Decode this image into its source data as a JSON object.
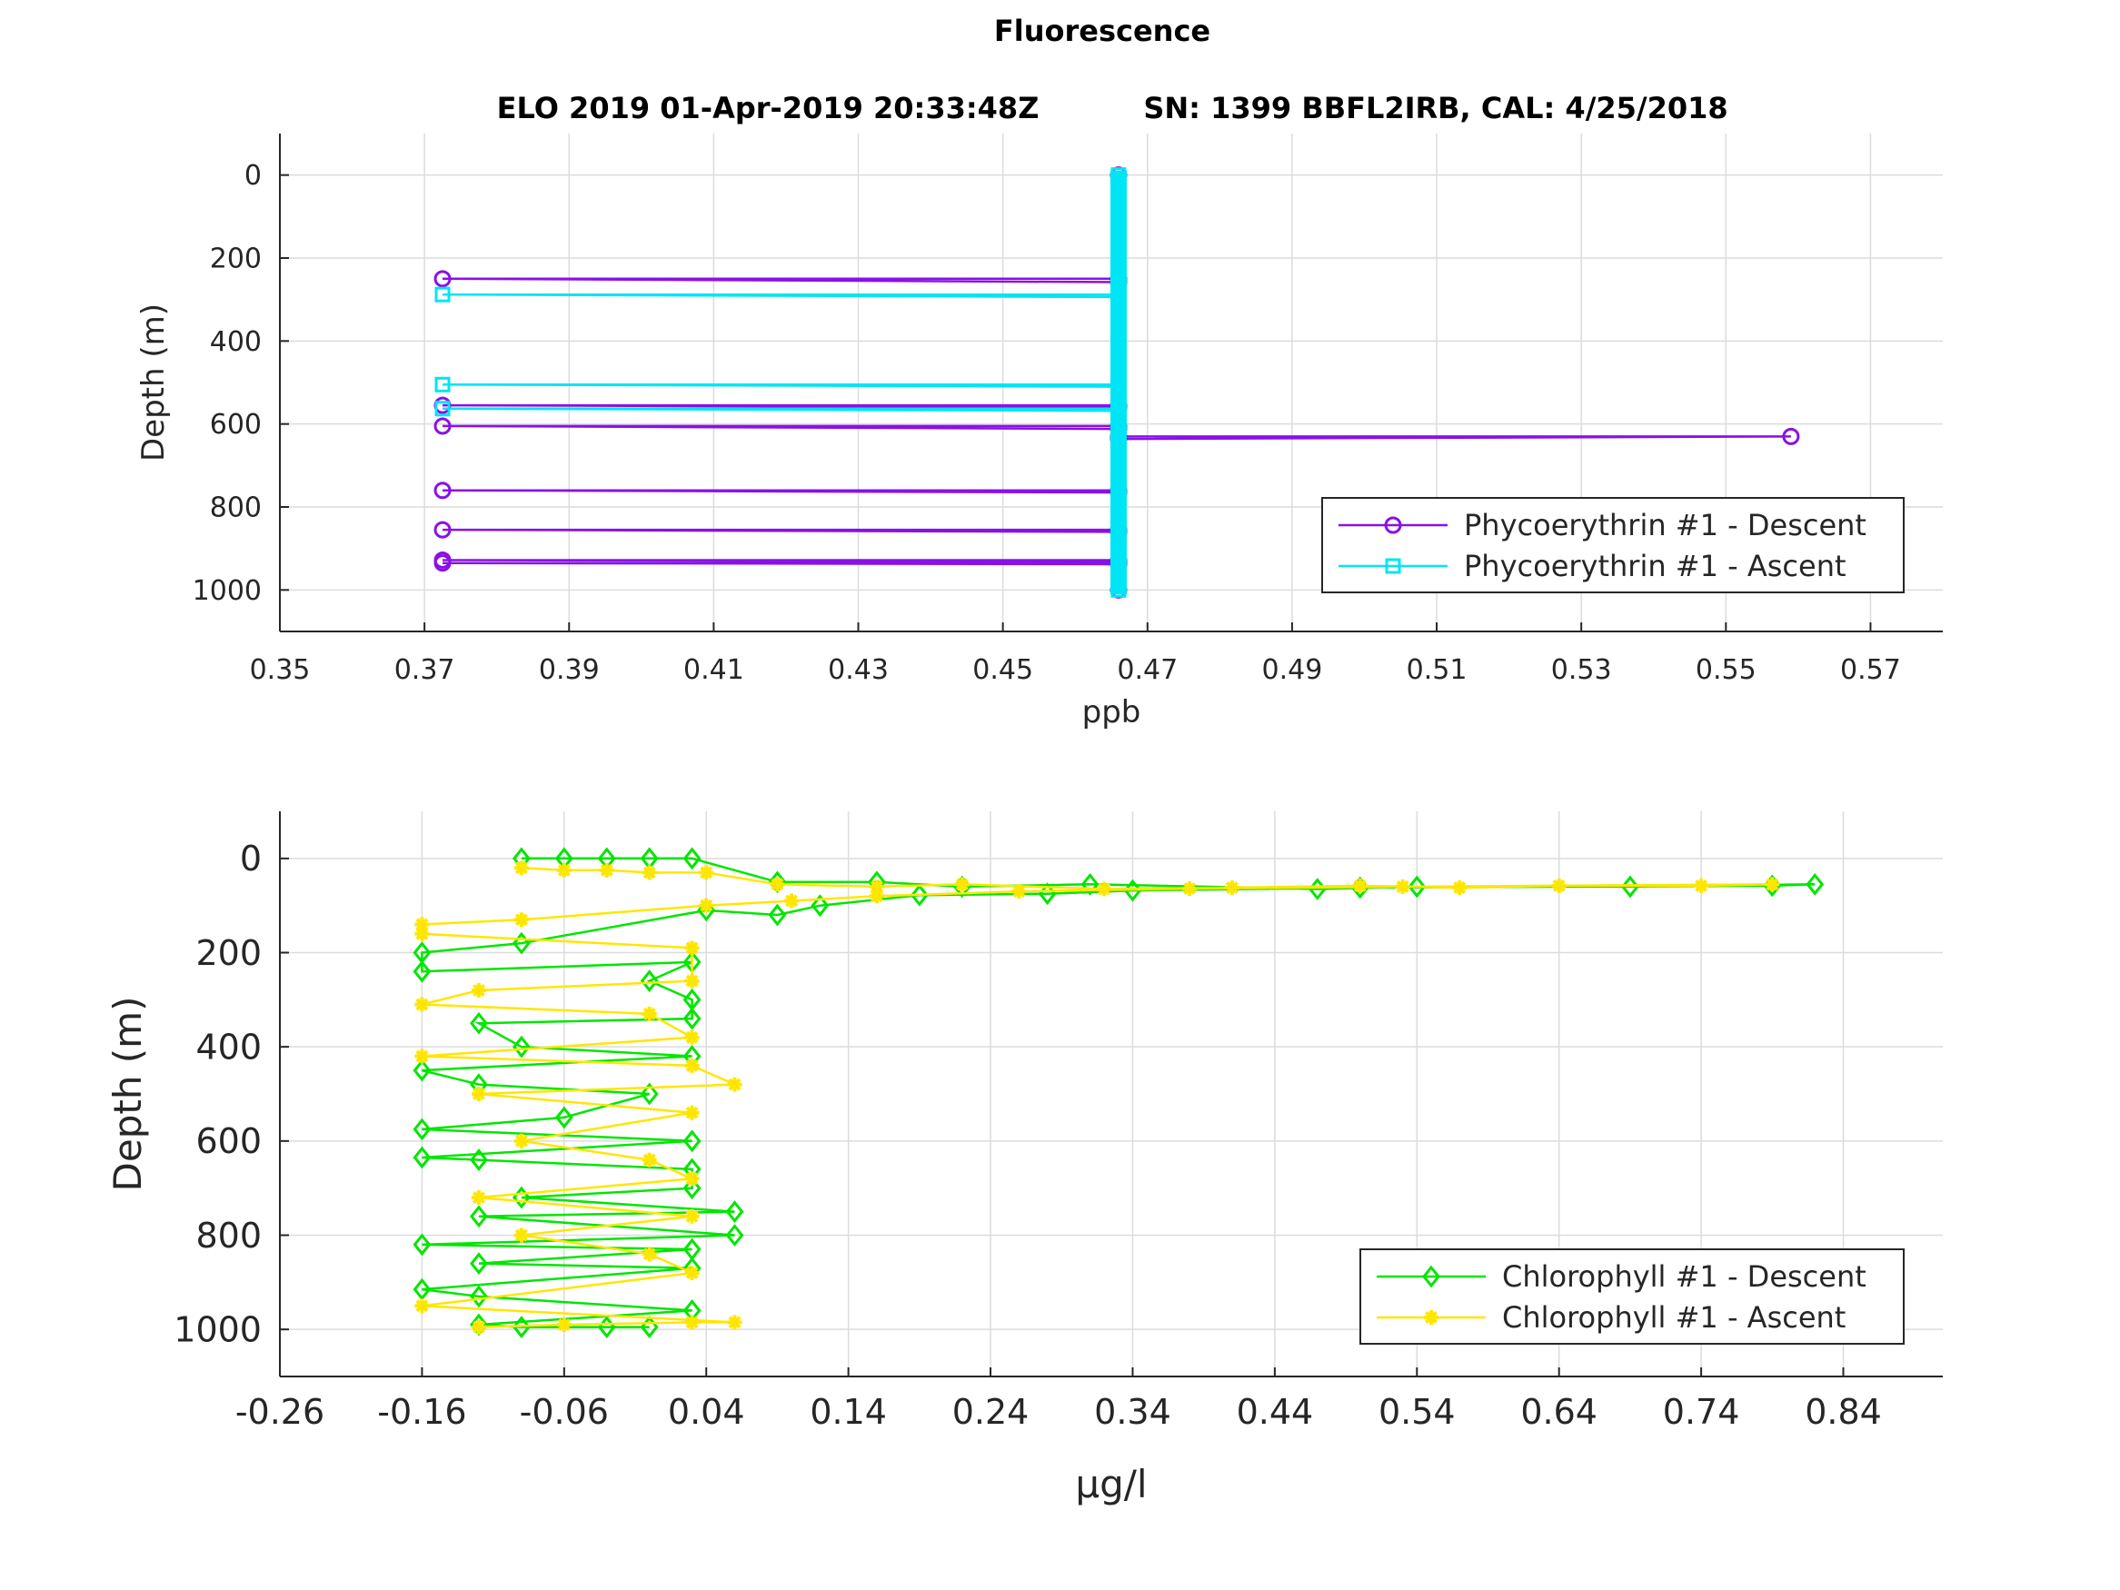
{
  "figure": {
    "title": "Fluorescence",
    "subtitle_left": "ELO 2019 01-Apr-2019 20:33:48Z",
    "subtitle_right": "SN: 1399 BBFL2IRB, CAL: 4/25/2018"
  },
  "colors": {
    "pe_descent": "#8a10e8",
    "pe_ascent": "#00e5f5",
    "chl_descent": "#00e600",
    "chl_ascent": "#ffe600",
    "axis": "#262626",
    "grid": "#dcdcdc"
  },
  "chart_data": [
    {
      "type": "line",
      "xlabel": "ppb",
      "ylabel": "Depth (m)",
      "xlim": [
        0.35,
        0.58
      ],
      "ylim": [
        -100,
        1100
      ],
      "y_reversed": true,
      "grid": true,
      "legend_position": "lower-right",
      "xticks": [
        0.35,
        0.37,
        0.39,
        0.41,
        0.43,
        0.45,
        0.47,
        0.49,
        0.51,
        0.53,
        0.55,
        0.57
      ],
      "yticks": [
        0,
        200,
        400,
        600,
        800,
        1000
      ],
      "baseline_value": 0.466,
      "series": [
        {
          "name": "Phycoerythrin #1 - Descent",
          "marker": "circle",
          "color_key": "pe_descent",
          "points": [
            [
              0.466,
              0
            ],
            [
              0.466,
              250
            ],
            [
              0.3725,
              250
            ],
            [
              0.466,
              258
            ],
            [
              0.466,
              555
            ],
            [
              0.3725,
              555
            ],
            [
              0.466,
              560
            ],
            [
              0.466,
              605
            ],
            [
              0.3725,
              605
            ],
            [
              0.466,
              612
            ],
            [
              0.466,
              630
            ],
            [
              0.559,
              630
            ],
            [
              0.466,
              636
            ],
            [
              0.466,
              760
            ],
            [
              0.3725,
              760
            ],
            [
              0.466,
              765
            ],
            [
              0.466,
              855
            ],
            [
              0.3725,
              855
            ],
            [
              0.466,
              860
            ],
            [
              0.466,
              928
            ],
            [
              0.3725,
              928
            ],
            [
              0.466,
              932
            ],
            [
              0.466,
              935
            ],
            [
              0.3725,
              935
            ],
            [
              0.466,
              938
            ],
            [
              0.466,
              1000
            ]
          ]
        },
        {
          "name": "Phycoerythrin #1 - Ascent",
          "marker": "square",
          "color_key": "pe_ascent",
          "points": [
            [
              0.466,
              0
            ],
            [
              0.466,
              288
            ],
            [
              0.3725,
              288
            ],
            [
              0.466,
              294
            ],
            [
              0.466,
              505
            ],
            [
              0.3725,
              505
            ],
            [
              0.466,
              510
            ],
            [
              0.466,
              563
            ],
            [
              0.3725,
              563
            ],
            [
              0.466,
              568
            ],
            [
              0.466,
              1000
            ]
          ]
        }
      ]
    },
    {
      "type": "line",
      "xlabel": "μg/l",
      "ylabel": "Depth (m)",
      "xlim": [
        -0.26,
        0.91
      ],
      "ylim": [
        -100,
        1100
      ],
      "y_reversed": true,
      "grid": true,
      "legend_position": "lower-right",
      "xticks": [
        -0.26,
        -0.16,
        -0.06,
        0.04,
        0.14,
        0.24,
        0.34,
        0.44,
        0.54,
        0.64,
        0.74,
        0.84
      ],
      "yticks": [
        0,
        200,
        400,
        600,
        800,
        1000
      ],
      "series": [
        {
          "name": "Chlorophyll #1 - Descent",
          "marker": "diamond",
          "color_key": "chl_descent",
          "points": [
            [
              -0.09,
              0
            ],
            [
              -0.06,
              0
            ],
            [
              -0.03,
              0
            ],
            [
              0.0,
              0
            ],
            [
              0.03,
              0
            ],
            [
              0.09,
              50
            ],
            [
              0.16,
              50
            ],
            [
              0.22,
              60
            ],
            [
              0.31,
              55
            ],
            [
              0.47,
              65
            ],
            [
              0.54,
              60
            ],
            [
              0.69,
              60
            ],
            [
              0.82,
              55
            ],
            [
              0.79,
              58
            ],
            [
              0.5,
              62
            ],
            [
              0.34,
              68
            ],
            [
              0.28,
              75
            ],
            [
              0.19,
              78
            ],
            [
              0.12,
              100
            ],
            [
              0.09,
              120
            ],
            [
              0.04,
              110
            ],
            [
              -0.09,
              180
            ],
            [
              -0.16,
              200
            ],
            [
              -0.16,
              240
            ],
            [
              0.03,
              220
            ],
            [
              0.0,
              260
            ],
            [
              0.03,
              300
            ],
            [
              0.03,
              340
            ],
            [
              -0.12,
              350
            ],
            [
              -0.09,
              400
            ],
            [
              0.03,
              420
            ],
            [
              -0.16,
              450
            ],
            [
              -0.12,
              480
            ],
            [
              0.0,
              500
            ],
            [
              -0.06,
              550
            ],
            [
              -0.16,
              575
            ],
            [
              0.03,
              600
            ],
            [
              -0.16,
              635
            ],
            [
              -0.12,
              640
            ],
            [
              0.03,
              660
            ],
            [
              0.03,
              700
            ],
            [
              -0.09,
              720
            ],
            [
              0.06,
              750
            ],
            [
              -0.12,
              760
            ],
            [
              0.06,
              800
            ],
            [
              -0.16,
              820
            ],
            [
              0.03,
              830
            ],
            [
              -0.12,
              860
            ],
            [
              0.03,
              870
            ],
            [
              -0.16,
              915
            ],
            [
              -0.12,
              930
            ],
            [
              0.03,
              960
            ],
            [
              -0.12,
              990
            ],
            [
              -0.09,
              995
            ],
            [
              -0.03,
              995
            ],
            [
              0.0,
              995
            ]
          ]
        },
        {
          "name": "Chlorophyll #1 - Ascent",
          "marker": "asterisk",
          "color_key": "chl_ascent",
          "points": [
            [
              -0.09,
              20
            ],
            [
              -0.06,
              25
            ],
            [
              -0.03,
              25
            ],
            [
              0.0,
              30
            ],
            [
              0.04,
              30
            ],
            [
              0.09,
              55
            ],
            [
              0.16,
              60
            ],
            [
              0.22,
              55
            ],
            [
              0.32,
              65
            ],
            [
              0.41,
              62
            ],
            [
              0.5,
              58
            ],
            [
              0.57,
              62
            ],
            [
              0.64,
              58
            ],
            [
              0.74,
              58
            ],
            [
              0.79,
              55
            ],
            [
              0.53,
              60
            ],
            [
              0.38,
              64
            ],
            [
              0.26,
              70
            ],
            [
              0.16,
              80
            ],
            [
              0.1,
              90
            ],
            [
              0.04,
              100
            ],
            [
              -0.09,
              130
            ],
            [
              -0.16,
              140
            ],
            [
              -0.16,
              160
            ],
            [
              0.03,
              190
            ],
            [
              0.03,
              260
            ],
            [
              -0.12,
              280
            ],
            [
              -0.16,
              310
            ],
            [
              0.0,
              330
            ],
            [
              0.03,
              380
            ],
            [
              -0.16,
              420
            ],
            [
              0.03,
              440
            ],
            [
              0.06,
              480
            ],
            [
              -0.12,
              500
            ],
            [
              0.03,
              540
            ],
            [
              -0.09,
              600
            ],
            [
              0.0,
              640
            ],
            [
              0.03,
              680
            ],
            [
              -0.12,
              720
            ],
            [
              0.03,
              760
            ],
            [
              -0.09,
              800
            ],
            [
              0.0,
              840
            ],
            [
              0.03,
              880
            ],
            [
              -0.16,
              950
            ],
            [
              0.06,
              985
            ],
            [
              0.03,
              985
            ],
            [
              -0.06,
              990
            ],
            [
              -0.12,
              995
            ]
          ]
        }
      ]
    }
  ]
}
